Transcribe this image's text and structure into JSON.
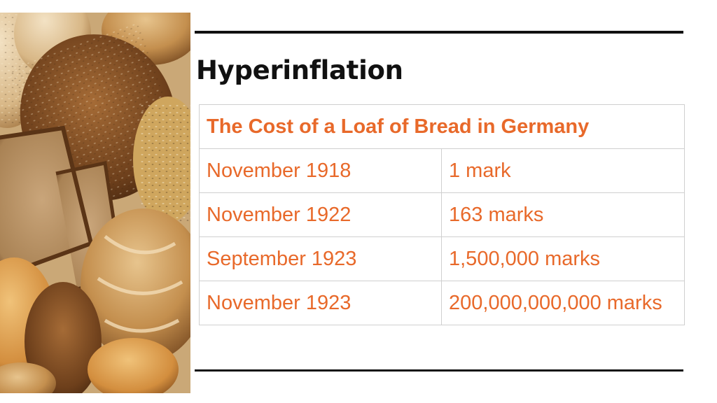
{
  "slide": {
    "title": "Hyperinflation",
    "accent_color": "#e8692a",
    "image": "bread-loaves-photo"
  },
  "table": {
    "header": "The Cost of a Loaf of Bread in Germany",
    "rows": [
      {
        "date": "November 1918",
        "price": "1 mark"
      },
      {
        "date": "November 1922",
        "price": "163 marks"
      },
      {
        "date": "September 1923",
        "price": "1,500,000 marks"
      },
      {
        "date": "November 1923",
        "price": "200,000,000,000 marks"
      }
    ]
  }
}
